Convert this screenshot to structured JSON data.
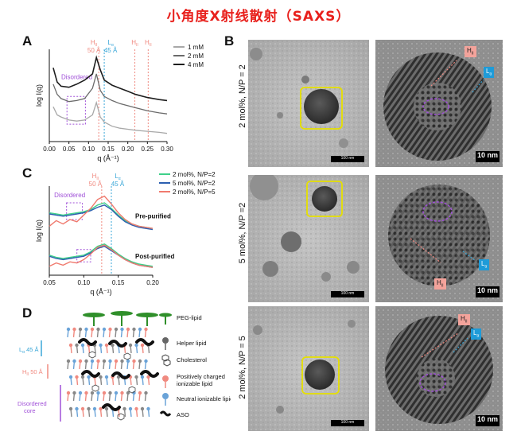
{
  "title": "小角度X射线散射（SAXS）",
  "panels": {
    "A": {
      "label": "A",
      "phase_labels": {
        "h2": "H",
        "h2_sub": "II",
        "h2_d": "50 Å",
        "l": "L",
        "l_sub": "α",
        "l_d": "45 Å",
        "h2b": "H",
        "h2b_sub": "II",
        "h2c": "H",
        "h2c_sub": "II"
      },
      "disordered_label": "Disordered",
      "legend": [
        "1 mM",
        "2 mM",
        "4 mM"
      ],
      "xlabel": "q (Å⁻¹)",
      "ylabel": "log I(q)",
      "xticks": [
        "0.00",
        "0.05",
        "0.10",
        "0.15",
        "0.20",
        "0.25",
        "0.30"
      ]
    },
    "B": {
      "label": "B",
      "row_labels": [
        "2 mol%, N/P = 2",
        "5 mol%, N/P =2",
        "2 mol%, N/P = 5"
      ],
      "scalebar_small": "100 nm",
      "scalebar_large": "10 nm",
      "tag_h": "H",
      "tag_h_sub": "II",
      "tag_l": "L",
      "tag_l_sub": "α"
    },
    "C": {
      "label": "C",
      "phase_labels": {
        "h2": "H",
        "h2_sub": "II",
        "h2_d": "50 Å",
        "l": "L",
        "l_sub": "α",
        "l_d": "45 Å"
      },
      "disordered_label": "Disordered",
      "legend": [
        "2 mol%, N/P=2",
        "5 mol%, N/P=2",
        "2 mol%, N/P=5"
      ],
      "annotations": [
        "Pre-purified",
        "Post-purified"
      ],
      "xlabel": "q (Å⁻¹)",
      "ylabel": "log I(q)",
      "xticks": [
        "0.05",
        "0.10",
        "0.15",
        "0.20"
      ]
    },
    "D": {
      "label": "D",
      "layer_labels": {
        "l": "L",
        "l_sub": "α",
        "l_d": "45 Å",
        "h": "H",
        "h_sub": "II",
        "h_d": "50 Å",
        "disordered_1": "Disordered",
        "disordered_2": "core"
      },
      "legend": [
        "PEG-lipid",
        "Helper lipid",
        "Cholesterol",
        "Positively charged",
        "ionizable lipid",
        "Neutral ionizable lipid",
        "ASO"
      ]
    }
  },
  "colors": {
    "title": "#e8201c",
    "h2": "#f08a80",
    "l": "#3aa7d8",
    "disordered": "#a050d8",
    "series_A": [
      "#a8a8a8",
      "#6a6a6a",
      "#1e1e1e"
    ],
    "series_C": [
      "#3fd08a",
      "#2c5fb0",
      "#f07a6e"
    ],
    "yellow_box": "#e6e000"
  },
  "chart_data": [
    {
      "type": "line",
      "panel": "A",
      "x": [
        0.01,
        0.02,
        0.03,
        0.05,
        0.07,
        0.09,
        0.11,
        0.12,
        0.13,
        0.14,
        0.16,
        0.18,
        0.2,
        0.22,
        0.25,
        0.28,
        0.3
      ],
      "series": [
        {
          "name": "1 mM",
          "values": [
            2.0,
            1.6,
            1.5,
            1.35,
            1.3,
            1.35,
            1.6,
            2.2,
            1.5,
            1.25,
            1.05,
            0.95,
            0.9,
            0.85,
            0.8,
            0.75,
            0.7
          ]
        },
        {
          "name": "2 mM",
          "values": [
            3.1,
            2.6,
            2.4,
            2.25,
            2.3,
            2.4,
            2.9,
            3.6,
            2.8,
            2.5,
            2.3,
            2.15,
            2.05,
            1.95,
            1.8,
            1.7,
            1.65
          ]
        },
        {
          "name": "4 mM",
          "values": [
            3.9,
            3.2,
            3.0,
            2.95,
            3.1,
            3.3,
            3.6,
            4.4,
            3.8,
            3.3,
            3.05,
            2.9,
            2.75,
            2.6,
            2.45,
            2.35,
            2.3
          ]
        }
      ],
      "xlim": [
        0.0,
        0.3
      ],
      "markers": {
        "h2": 0.126,
        "l": 0.14,
        "h2b": 0.218,
        "h2c": 0.252
      }
    },
    {
      "type": "line",
      "panel": "C",
      "x": [
        0.05,
        0.06,
        0.07,
        0.08,
        0.09,
        0.1,
        0.11,
        0.12,
        0.13,
        0.14,
        0.15,
        0.16,
        0.17,
        0.18,
        0.19,
        0.2
      ],
      "series": [
        {
          "name": "2 mol%, N/P=2",
          "values": [
            3.6,
            3.55,
            3.5,
            3.55,
            3.6,
            3.65,
            3.75,
            3.95,
            4.05,
            3.8,
            3.5,
            3.25,
            3.1,
            3.0,
            2.95,
            2.9
          ]
        },
        {
          "name": "5 mol%, N/P=2",
          "values": [
            3.55,
            3.5,
            3.45,
            3.5,
            3.55,
            3.6,
            3.7,
            3.85,
            3.95,
            3.75,
            3.45,
            3.2,
            3.05,
            2.95,
            2.9,
            2.85
          ]
        },
        {
          "name": "2 mol%, N/P=5",
          "values": [
            3.0,
            3.25,
            3.1,
            3.3,
            3.2,
            3.5,
            3.8,
            4.2,
            4.35,
            4.0,
            3.6,
            3.3,
            3.1,
            3.0,
            2.95,
            2.9
          ]
        }
      ],
      "series_post": [
        {
          "name": "2 mol%, N/P=2",
          "values": [
            1.7,
            1.6,
            1.55,
            1.6,
            1.65,
            1.7,
            1.85,
            2.1,
            2.2,
            2.0,
            1.75,
            1.55,
            1.4,
            1.3,
            1.25,
            1.2
          ]
        },
        {
          "name": "5 mol%, N/P=2",
          "values": [
            1.65,
            1.55,
            1.5,
            1.55,
            1.6,
            1.65,
            1.8,
            2.0,
            2.1,
            1.9,
            1.7,
            1.5,
            1.35,
            1.25,
            1.2,
            1.15
          ]
        },
        {
          "name": "2 mol%, N/P=5",
          "values": [
            1.2,
            1.35,
            1.25,
            1.4,
            1.35,
            1.5,
            1.75,
            2.05,
            2.15,
            1.95,
            1.7,
            1.5,
            1.35,
            1.25,
            1.2,
            1.15
          ]
        }
      ],
      "xlim": [
        0.05,
        0.2
      ],
      "markers": {
        "h2": 0.126,
        "l": 0.14
      }
    }
  ]
}
